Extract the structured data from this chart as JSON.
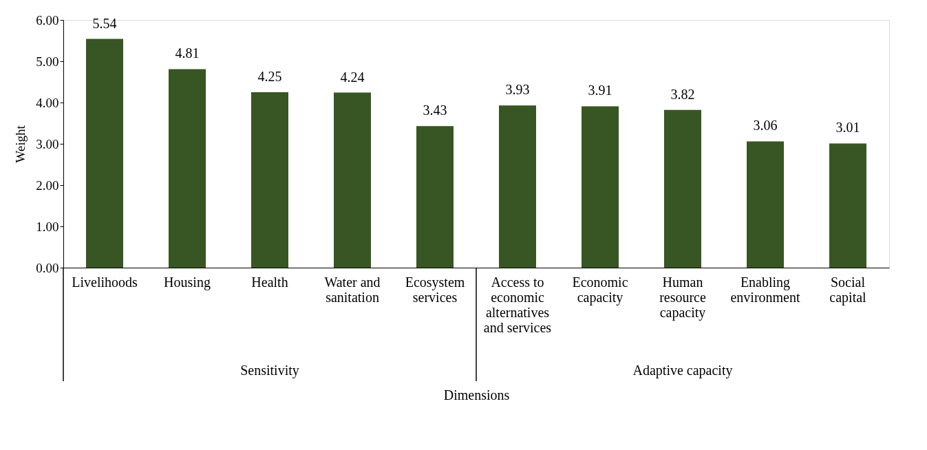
{
  "chart_data": {
    "type": "bar",
    "xlabel": "Dimensions",
    "ylabel": "Weight",
    "categories": [
      "Livelihoods",
      "Housing",
      "Health",
      "Water and sanitation",
      "Ecosystem services",
      "Access to economic alternatives and services",
      "Economic capacity",
      "Human resource capacity",
      "Enabling environment",
      "Social capital"
    ],
    "values": [
      5.54,
      4.81,
      4.25,
      4.24,
      3.43,
      3.93,
      3.91,
      3.82,
      3.06,
      3.01
    ],
    "color": "#375623",
    "ylim": [
      0,
      6
    ],
    "yticks": [
      {
        "value": 0,
        "label": "0.00"
      },
      {
        "value": 1,
        "label": "1.00"
      },
      {
        "value": 2,
        "label": "2.00"
      },
      {
        "value": 3,
        "label": "3.00"
      },
      {
        "value": 4,
        "label": "4.00"
      },
      {
        "value": 5,
        "label": "5.00"
      },
      {
        "value": 6,
        "label": "6.00"
      }
    ],
    "grid": false,
    "data_labels": true,
    "annotations": [
      "Sensitivity",
      "Adaptive capacity"
    ]
  }
}
